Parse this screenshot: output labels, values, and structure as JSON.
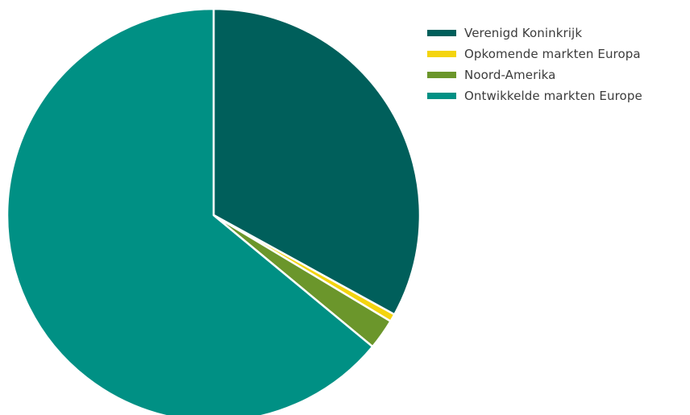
{
  "chart_data": {
    "type": "pie",
    "title": "",
    "series": [
      {
        "values": [
          33.0,
          0.6,
          2.4,
          64.0
        ],
        "categories": [
          "Verenigd Koninkrijk",
          "Opkomende markten Europa",
          "Noord-Amerika",
          "Ontwikkelde markten Europe"
        ]
      }
    ],
    "legend": {
      "position": "top-right",
      "items": [
        {
          "label": "Verenigd Koninkrijk",
          "color": "#005f5b"
        },
        {
          "label": "Opkomende markten Europa",
          "color": "#f4d40f"
        },
        {
          "label": "Noord-Amerika",
          "color": "#6b962b"
        },
        {
          "label": "Ontwikkelde markten Europe",
          "color": "#009084"
        }
      ]
    },
    "start_angle_deg": 0,
    "direction": "clockwise",
    "separator_color": "#ffffff"
  }
}
